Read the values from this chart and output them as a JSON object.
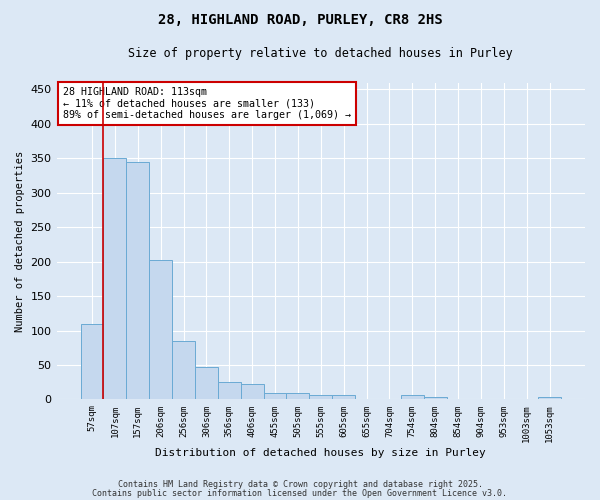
{
  "title1": "28, HIGHLAND ROAD, PURLEY, CR8 2HS",
  "title2": "Size of property relative to detached houses in Purley",
  "xlabel": "Distribution of detached houses by size in Purley",
  "ylabel": "Number of detached properties",
  "categories": [
    "57sqm",
    "107sqm",
    "157sqm",
    "206sqm",
    "256sqm",
    "306sqm",
    "356sqm",
    "406sqm",
    "455sqm",
    "505sqm",
    "555sqm",
    "605sqm",
    "655sqm",
    "704sqm",
    "754sqm",
    "804sqm",
    "854sqm",
    "904sqm",
    "953sqm",
    "1003sqm",
    "1053sqm"
  ],
  "values": [
    110,
    350,
    345,
    203,
    85,
    47,
    25,
    22,
    9,
    10,
    6,
    6,
    1,
    1,
    6,
    3,
    1,
    1,
    1,
    1,
    4
  ],
  "bar_color": "#c5d8ee",
  "bar_edge_color": "#6aaad4",
  "background_color": "#dce8f5",
  "grid_color": "#ffffff",
  "vline_color": "#cc0000",
  "vline_position": 0.5,
  "annotation_text": "28 HIGHLAND ROAD: 113sqm\n← 11% of detached houses are smaller (133)\n89% of semi-detached houses are larger (1,069) →",
  "annotation_box_facecolor": "#ffffff",
  "annotation_box_edgecolor": "#cc0000",
  "ylim": [
    0,
    460
  ],
  "yticks": [
    0,
    50,
    100,
    150,
    200,
    250,
    300,
    350,
    400,
    450
  ],
  "footnote1": "Contains HM Land Registry data © Crown copyright and database right 2025.",
  "footnote2": "Contains public sector information licensed under the Open Government Licence v3.0."
}
